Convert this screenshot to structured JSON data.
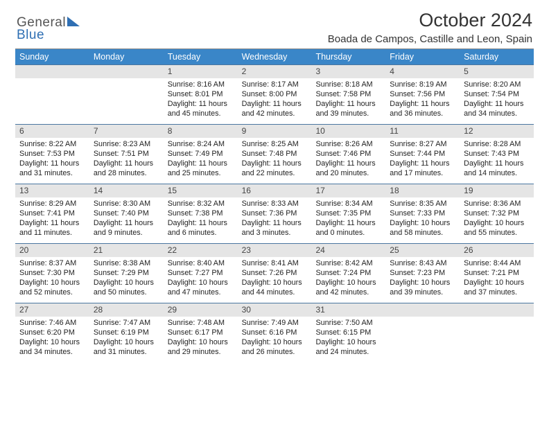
{
  "brand": {
    "part1": "General",
    "part2": "Blue"
  },
  "title": "October 2024",
  "location": "Boada de Campos, Castille and Leon, Spain",
  "dayNames": [
    "Sunday",
    "Monday",
    "Tuesday",
    "Wednesday",
    "Thursday",
    "Friday",
    "Saturday"
  ],
  "colors": {
    "header_bg": "#3a86c8",
    "header_text": "#ffffff",
    "daynum_bg": "#e5e5e5",
    "border": "#4a76a0"
  },
  "weeks": [
    [
      {
        "n": "",
        "sr": "",
        "ss": "",
        "dl1": "",
        "dl2": "",
        "empty": true
      },
      {
        "n": "",
        "sr": "",
        "ss": "",
        "dl1": "",
        "dl2": "",
        "empty": true
      },
      {
        "n": "1",
        "sr": "Sunrise: 8:16 AM",
        "ss": "Sunset: 8:01 PM",
        "dl1": "Daylight: 11 hours",
        "dl2": "and 45 minutes."
      },
      {
        "n": "2",
        "sr": "Sunrise: 8:17 AM",
        "ss": "Sunset: 8:00 PM",
        "dl1": "Daylight: 11 hours",
        "dl2": "and 42 minutes."
      },
      {
        "n": "3",
        "sr": "Sunrise: 8:18 AM",
        "ss": "Sunset: 7:58 PM",
        "dl1": "Daylight: 11 hours",
        "dl2": "and 39 minutes."
      },
      {
        "n": "4",
        "sr": "Sunrise: 8:19 AM",
        "ss": "Sunset: 7:56 PM",
        "dl1": "Daylight: 11 hours",
        "dl2": "and 36 minutes."
      },
      {
        "n": "5",
        "sr": "Sunrise: 8:20 AM",
        "ss": "Sunset: 7:54 PM",
        "dl1": "Daylight: 11 hours",
        "dl2": "and 34 minutes."
      }
    ],
    [
      {
        "n": "6",
        "sr": "Sunrise: 8:22 AM",
        "ss": "Sunset: 7:53 PM",
        "dl1": "Daylight: 11 hours",
        "dl2": "and 31 minutes."
      },
      {
        "n": "7",
        "sr": "Sunrise: 8:23 AM",
        "ss": "Sunset: 7:51 PM",
        "dl1": "Daylight: 11 hours",
        "dl2": "and 28 minutes."
      },
      {
        "n": "8",
        "sr": "Sunrise: 8:24 AM",
        "ss": "Sunset: 7:49 PM",
        "dl1": "Daylight: 11 hours",
        "dl2": "and 25 minutes."
      },
      {
        "n": "9",
        "sr": "Sunrise: 8:25 AM",
        "ss": "Sunset: 7:48 PM",
        "dl1": "Daylight: 11 hours",
        "dl2": "and 22 minutes."
      },
      {
        "n": "10",
        "sr": "Sunrise: 8:26 AM",
        "ss": "Sunset: 7:46 PM",
        "dl1": "Daylight: 11 hours",
        "dl2": "and 20 minutes."
      },
      {
        "n": "11",
        "sr": "Sunrise: 8:27 AM",
        "ss": "Sunset: 7:44 PM",
        "dl1": "Daylight: 11 hours",
        "dl2": "and 17 minutes."
      },
      {
        "n": "12",
        "sr": "Sunrise: 8:28 AM",
        "ss": "Sunset: 7:43 PM",
        "dl1": "Daylight: 11 hours",
        "dl2": "and 14 minutes."
      }
    ],
    [
      {
        "n": "13",
        "sr": "Sunrise: 8:29 AM",
        "ss": "Sunset: 7:41 PM",
        "dl1": "Daylight: 11 hours",
        "dl2": "and 11 minutes."
      },
      {
        "n": "14",
        "sr": "Sunrise: 8:30 AM",
        "ss": "Sunset: 7:40 PM",
        "dl1": "Daylight: 11 hours",
        "dl2": "and 9 minutes."
      },
      {
        "n": "15",
        "sr": "Sunrise: 8:32 AM",
        "ss": "Sunset: 7:38 PM",
        "dl1": "Daylight: 11 hours",
        "dl2": "and 6 minutes."
      },
      {
        "n": "16",
        "sr": "Sunrise: 8:33 AM",
        "ss": "Sunset: 7:36 PM",
        "dl1": "Daylight: 11 hours",
        "dl2": "and 3 minutes."
      },
      {
        "n": "17",
        "sr": "Sunrise: 8:34 AM",
        "ss": "Sunset: 7:35 PM",
        "dl1": "Daylight: 11 hours",
        "dl2": "and 0 minutes."
      },
      {
        "n": "18",
        "sr": "Sunrise: 8:35 AM",
        "ss": "Sunset: 7:33 PM",
        "dl1": "Daylight: 10 hours",
        "dl2": "and 58 minutes."
      },
      {
        "n": "19",
        "sr": "Sunrise: 8:36 AM",
        "ss": "Sunset: 7:32 PM",
        "dl1": "Daylight: 10 hours",
        "dl2": "and 55 minutes."
      }
    ],
    [
      {
        "n": "20",
        "sr": "Sunrise: 8:37 AM",
        "ss": "Sunset: 7:30 PM",
        "dl1": "Daylight: 10 hours",
        "dl2": "and 52 minutes."
      },
      {
        "n": "21",
        "sr": "Sunrise: 8:38 AM",
        "ss": "Sunset: 7:29 PM",
        "dl1": "Daylight: 10 hours",
        "dl2": "and 50 minutes."
      },
      {
        "n": "22",
        "sr": "Sunrise: 8:40 AM",
        "ss": "Sunset: 7:27 PM",
        "dl1": "Daylight: 10 hours",
        "dl2": "and 47 minutes."
      },
      {
        "n": "23",
        "sr": "Sunrise: 8:41 AM",
        "ss": "Sunset: 7:26 PM",
        "dl1": "Daylight: 10 hours",
        "dl2": "and 44 minutes."
      },
      {
        "n": "24",
        "sr": "Sunrise: 8:42 AM",
        "ss": "Sunset: 7:24 PM",
        "dl1": "Daylight: 10 hours",
        "dl2": "and 42 minutes."
      },
      {
        "n": "25",
        "sr": "Sunrise: 8:43 AM",
        "ss": "Sunset: 7:23 PM",
        "dl1": "Daylight: 10 hours",
        "dl2": "and 39 minutes."
      },
      {
        "n": "26",
        "sr": "Sunrise: 8:44 AM",
        "ss": "Sunset: 7:21 PM",
        "dl1": "Daylight: 10 hours",
        "dl2": "and 37 minutes."
      }
    ],
    [
      {
        "n": "27",
        "sr": "Sunrise: 7:46 AM",
        "ss": "Sunset: 6:20 PM",
        "dl1": "Daylight: 10 hours",
        "dl2": "and 34 minutes."
      },
      {
        "n": "28",
        "sr": "Sunrise: 7:47 AM",
        "ss": "Sunset: 6:19 PM",
        "dl1": "Daylight: 10 hours",
        "dl2": "and 31 minutes."
      },
      {
        "n": "29",
        "sr": "Sunrise: 7:48 AM",
        "ss": "Sunset: 6:17 PM",
        "dl1": "Daylight: 10 hours",
        "dl2": "and 29 minutes."
      },
      {
        "n": "30",
        "sr": "Sunrise: 7:49 AM",
        "ss": "Sunset: 6:16 PM",
        "dl1": "Daylight: 10 hours",
        "dl2": "and 26 minutes."
      },
      {
        "n": "31",
        "sr": "Sunrise: 7:50 AM",
        "ss": "Sunset: 6:15 PM",
        "dl1": "Daylight: 10 hours",
        "dl2": "and 24 minutes."
      },
      {
        "n": "",
        "sr": "",
        "ss": "",
        "dl1": "",
        "dl2": "",
        "empty": true
      },
      {
        "n": "",
        "sr": "",
        "ss": "",
        "dl1": "",
        "dl2": "",
        "empty": true
      }
    ]
  ]
}
